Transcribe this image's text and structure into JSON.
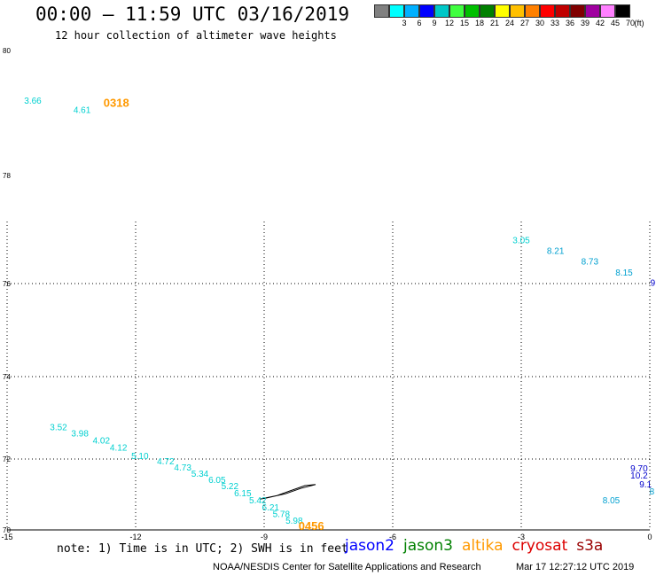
{
  "header": {
    "title": "00:00 – 11:59 UTC 03/16/2019",
    "subtitle": "12 hour collection of altimeter wave heights"
  },
  "colorbar": {
    "unit": "(ft)",
    "bins": [
      {
        "label": "",
        "color": "#808080"
      },
      {
        "label": "3",
        "color": "#00ffff"
      },
      {
        "label": "6",
        "color": "#00b0ff"
      },
      {
        "label": "9",
        "color": "#0000ff"
      },
      {
        "label": "12",
        "color": "#00c8c8"
      },
      {
        "label": "15",
        "color": "#40ff40"
      },
      {
        "label": "18",
        "color": "#00c000"
      },
      {
        "label": "21",
        "color": "#008000"
      },
      {
        "label": "24",
        "color": "#ffff00"
      },
      {
        "label": "27",
        "color": "#ffc000"
      },
      {
        "label": "30",
        "color": "#ff8000"
      },
      {
        "label": "33",
        "color": "#ff0000"
      },
      {
        "label": "36",
        "color": "#c00000"
      },
      {
        "label": "39",
        "color": "#800000"
      },
      {
        "label": "42",
        "color": "#a000a0"
      },
      {
        "label": "45",
        "color": "#ff80ff"
      },
      {
        "label": "70",
        "color": "#000000"
      }
    ]
  },
  "map": {
    "lon_range": [
      -15,
      0
    ],
    "lat_range": [
      70,
      80
    ],
    "x_ticks": [
      "-15",
      "-12",
      "-9",
      "-6",
      "-3",
      "0"
    ],
    "y_ticks": [
      "80",
      "78",
      "76",
      "74",
      "72",
      "70"
    ],
    "time_labels": [
      {
        "text": "0318",
        "lon": -12.45,
        "lat": 79.1,
        "color": "#ff9900"
      },
      {
        "text": "0456",
        "lon": -7.9,
        "lat": 70.0,
        "color": "#ff9900"
      }
    ],
    "swh_points": [
      {
        "text": "3.66",
        "lon": -14.4,
        "lat": 79.15,
        "color": "#00d0d0"
      },
      {
        "text": "4.61",
        "lon": -13.25,
        "lat": 79.0,
        "color": "#00d0d0"
      },
      {
        "text": "3.05",
        "lon": -3.0,
        "lat": 76.75,
        "color": "#00d0d0"
      },
      {
        "text": "8.21",
        "lon": -2.2,
        "lat": 76.55,
        "color": "#00a0d0"
      },
      {
        "text": "8.73",
        "lon": -1.4,
        "lat": 76.35,
        "color": "#00a0d0"
      },
      {
        "text": "8.15",
        "lon": -0.6,
        "lat": 76.15,
        "color": "#00a0d0"
      },
      {
        "text": "9.",
        "lon": 0.1,
        "lat": 75.95,
        "color": "#0000cc"
      },
      {
        "text": "3.52",
        "lon": -13.8,
        "lat": 72.7,
        "color": "#00d0d0"
      },
      {
        "text": "3.98",
        "lon": -13.3,
        "lat": 72.55,
        "color": "#00d0d0"
      },
      {
        "text": "4.02",
        "lon": -12.8,
        "lat": 72.38,
        "color": "#00d0d0"
      },
      {
        "text": "4.12",
        "lon": -12.4,
        "lat": 72.2,
        "color": "#00d0d0"
      },
      {
        "text": "5.10",
        "lon": -11.9,
        "lat": 72.0,
        "color": "#00d0d0"
      },
      {
        "text": "4.72",
        "lon": -11.3,
        "lat": 71.85,
        "color": "#00d0d0"
      },
      {
        "text": "4.73",
        "lon": -10.9,
        "lat": 71.67,
        "color": "#00d0d0"
      },
      {
        "text": "5.34",
        "lon": -10.5,
        "lat": 71.5,
        "color": "#00d0d0"
      },
      {
        "text": "6.05",
        "lon": -10.1,
        "lat": 71.33,
        "color": "#00d0d0"
      },
      {
        "text": "5.22",
        "lon": -9.8,
        "lat": 71.15,
        "color": "#00d0d0"
      },
      {
        "text": "6.15",
        "lon": -9.5,
        "lat": 70.95,
        "color": "#00d0d0"
      },
      {
        "text": "5.42",
        "lon": -9.15,
        "lat": 70.75,
        "color": "#00d0d0"
      },
      {
        "text": "6.21",
        "lon": -8.85,
        "lat": 70.55,
        "color": "#00d0d0"
      },
      {
        "text": "5.78",
        "lon": -8.6,
        "lat": 70.36,
        "color": "#00d0d0"
      },
      {
        "text": "5.98",
        "lon": -8.3,
        "lat": 70.17,
        "color": "#00d0d0"
      },
      {
        "text": "9.70",
        "lon": -0.25,
        "lat": 71.65,
        "color": "#0000cc"
      },
      {
        "text": "10.2",
        "lon": -0.25,
        "lat": 71.45,
        "color": "#0000cc"
      },
      {
        "text": "9.1",
        "lon": -0.1,
        "lat": 71.2,
        "color": "#0000cc"
      },
      {
        "text": "8",
        "lon": 0.05,
        "lat": 71.0,
        "color": "#00a0d0"
      },
      {
        "text": "8.05",
        "lon": -0.9,
        "lat": 70.75,
        "color": "#00a0d0"
      }
    ],
    "island_outline": [
      [
        -9.1,
        70.87
      ],
      [
        -8.7,
        70.97
      ],
      [
        -8.4,
        71.1
      ],
      [
        -8.05,
        71.25
      ],
      [
        -7.8,
        71.28
      ],
      [
        -8.15,
        71.17
      ],
      [
        -8.5,
        71.02
      ],
      [
        -8.95,
        70.9
      ],
      [
        -9.1,
        70.87
      ]
    ]
  },
  "footer": {
    "note": "note: 1) Time is in UTC; 2) SWH is in feet",
    "satellites": [
      {
        "name": "jason2",
        "color": "#0000ff"
      },
      {
        "name": "jason3",
        "color": "#008000"
      },
      {
        "name": "altika",
        "color": "#ff9900"
      },
      {
        "name": "cryosat",
        "color": "#dd0000"
      },
      {
        "name": "s3a",
        "color": "#990000"
      }
    ],
    "credit": "NOAA/NESDIS Center for Satellite Applications and Research",
    "timestamp": "Mar 17 12:27:12 UTC 2019"
  }
}
